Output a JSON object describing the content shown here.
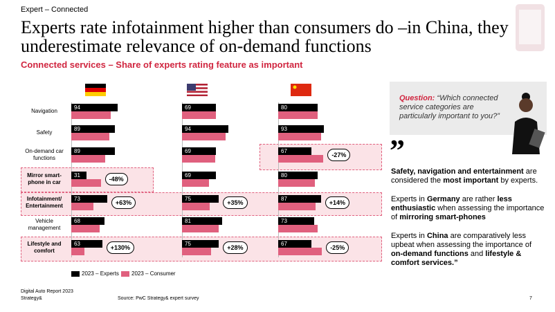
{
  "header": {
    "tag": "Expert – Connected",
    "title": "Experts rate infotainment higher than consumers do –in China, they underestimate relevance of on-demand functions"
  },
  "chart_data": {
    "type": "bar",
    "subtitle": "Connected services – Share of experts rating feature as important",
    "categories": [
      "Navigation",
      "Safety",
      "On-demand car functions",
      "Mirror smart-phone in car",
      "Infotainment/ Entertainment",
      "Vehicle management",
      "Lifestyle and comfort"
    ],
    "bold_categories": [
      false,
      false,
      false,
      true,
      true,
      false,
      true
    ],
    "series": [
      {
        "name": "2023 – Experts",
        "color": "#000000"
      },
      {
        "name": "2023 – Consumer",
        "color": "#e0607e"
      }
    ],
    "panels": [
      {
        "flag": "de",
        "experts": [
          94,
          89,
          89,
          31,
          73,
          68,
          63
        ],
        "consumer": [
          80,
          78,
          69,
          60,
          45,
          58,
          27
        ],
        "changes": [
          null,
          null,
          null,
          "-48%",
          "+63%",
          null,
          "+130%"
        ]
      },
      {
        "flag": "us",
        "experts": [
          69,
          94,
          69,
          69,
          75,
          81,
          75
        ],
        "consumer": [
          69,
          89,
          68,
          55,
          56,
          75,
          59
        ],
        "changes": [
          null,
          null,
          null,
          null,
          "+35%",
          null,
          "+28%"
        ]
      },
      {
        "flag": "cn",
        "experts": [
          80,
          93,
          67,
          80,
          87,
          73,
          67
        ],
        "consumer": [
          80,
          88,
          92,
          75,
          76,
          80,
          89
        ],
        "changes": [
          null,
          null,
          "-27%",
          null,
          "+14%",
          null,
          "-25%"
        ]
      }
    ]
  },
  "sidebar": {
    "question_label": "Question:",
    "question": "“Which connected service categories are particularly important to you?”",
    "paragraphs": [
      [
        {
          "text": "Safety, navigation and entertainment",
          "bold": true
        },
        {
          "text": " are considered the ",
          "bold": false
        },
        {
          "text": "most important",
          "bold": true
        },
        {
          "text": " by experts.",
          "bold": false
        }
      ],
      [
        {
          "text": "Experts in ",
          "bold": false
        },
        {
          "text": "Germany",
          "bold": true
        },
        {
          "text": " are rather ",
          "bold": false
        },
        {
          "text": "less enthusiastic",
          "bold": true
        },
        {
          "text": " when assessing the importance of ",
          "bold": false
        },
        {
          "text": "mirroring smart-phones",
          "bold": true
        }
      ],
      [
        {
          "text": "Experts in ",
          "bold": false
        },
        {
          "text": "China",
          "bold": true
        },
        {
          "text": " are comparatively less upbeat when assessing the  importance of ",
          "bold": false
        },
        {
          "text": "on-demand functions",
          "bold": true
        },
        {
          "text": " and ",
          "bold": false
        },
        {
          "text": "lifestyle & comfort services.”",
          "bold": true
        }
      ]
    ]
  },
  "footer": {
    "report": "Digital Auto Report 2023",
    "brand": "Strategy&",
    "source": "Source: PwC Strategy& expert survey",
    "page": "7"
  }
}
